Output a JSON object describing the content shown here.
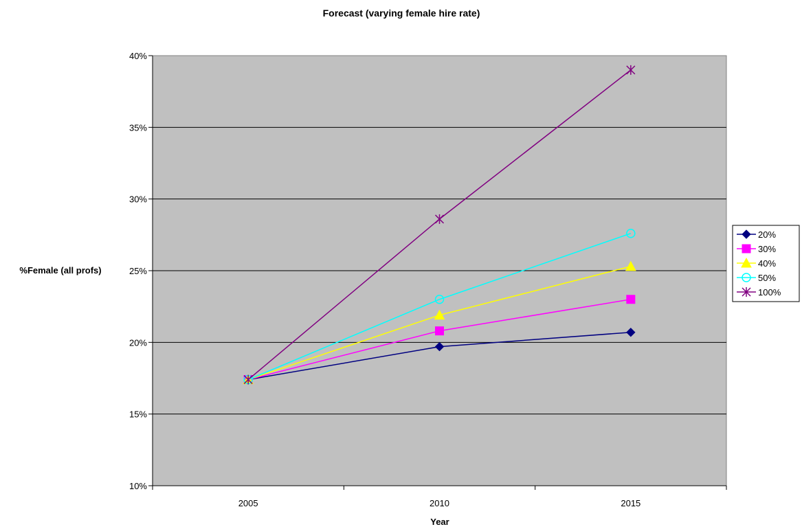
{
  "chart_data": {
    "type": "line",
    "title": "Forecast (varying female hire rate)",
    "xlabel": "Year",
    "ylabel": "%Female (all profs)",
    "categories": [
      "2005",
      "2010",
      "2015"
    ],
    "ylim": [
      0.1,
      0.4
    ],
    "yticks": [
      "10%",
      "15%",
      "20%",
      "25%",
      "30%",
      "35%",
      "40%"
    ],
    "grid": "horizontal",
    "legend_position": "right",
    "plot_background": "#c0c0c0",
    "series": [
      {
        "name": "20%",
        "values": [
          0.174,
          0.197,
          0.207
        ],
        "color": "#000080",
        "marker": "diamond"
      },
      {
        "name": "30%",
        "values": [
          0.174,
          0.208,
          0.23
        ],
        "color": "#ff00ff",
        "marker": "square"
      },
      {
        "name": "40%",
        "values": [
          0.174,
          0.219,
          0.253
        ],
        "color": "#ffff00",
        "marker": "triangle"
      },
      {
        "name": "50%",
        "values": [
          0.174,
          0.23,
          0.276
        ],
        "color": "#00ffff",
        "marker": "circle"
      },
      {
        "name": "100%",
        "values": [
          0.174,
          0.286,
          0.39
        ],
        "color": "#800080",
        "marker": "star"
      }
    ]
  }
}
